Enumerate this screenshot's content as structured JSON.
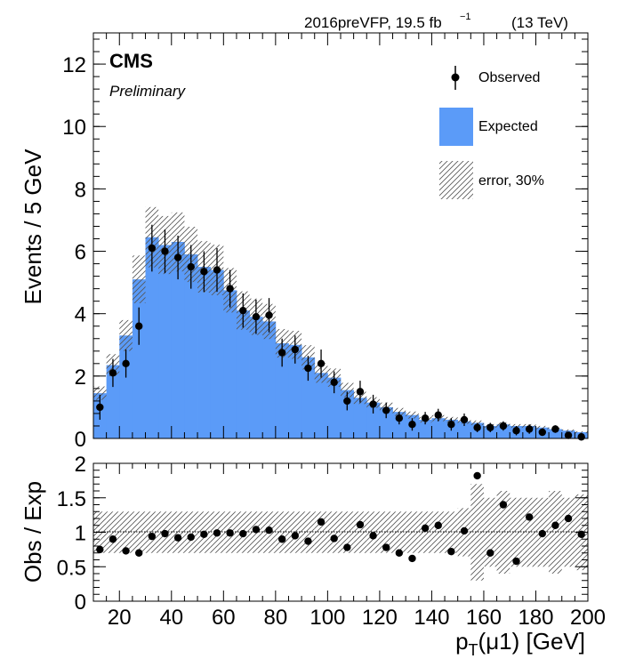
{
  "header": {
    "lumi_main": "2016preVFP, 19.5 fb",
    "lumi_exp": "−1",
    "lumi_energy": "(13 TeV)",
    "cms": "CMS",
    "preliminary": "Preliminary"
  },
  "legend": {
    "observed": "Observed",
    "expected": "Expected",
    "error": "error, 30%"
  },
  "colors": {
    "expected": "#5b9bf8",
    "points": "#000000"
  },
  "chart_data": [
    {
      "type": "bar",
      "panel": "top",
      "ylabel": "Events / 5 GeV",
      "ylim": [
        0,
        13
      ],
      "xlim": [
        10,
        200
      ],
      "yticks": [
        0,
        2,
        4,
        6,
        8,
        10,
        12
      ],
      "xticks": [
        20,
        40,
        60,
        80,
        100,
        120,
        140,
        160,
        180,
        200
      ],
      "bin_width": 5,
      "bin_edges": [
        10,
        15,
        20,
        25,
        30,
        35,
        40,
        45,
        50,
        55,
        60,
        65,
        70,
        75,
        80,
        85,
        90,
        95,
        100,
        105,
        110,
        115,
        120,
        125,
        130,
        135,
        140,
        145,
        150,
        155,
        160,
        165,
        170,
        175,
        180,
        185,
        190,
        195,
        200
      ],
      "series": [
        {
          "name": "Expected",
          "values": [
            1.45,
            2.35,
            3.3,
            5.1,
            6.45,
            6.2,
            6.3,
            5.9,
            5.5,
            5.4,
            4.75,
            4.1,
            3.9,
            3.75,
            3.05,
            3.0,
            2.6,
            2.1,
            1.95,
            1.55,
            1.3,
            1.15,
            1.0,
            0.85,
            0.75,
            0.6,
            0.65,
            0.6,
            0.55,
            0.5,
            0.4,
            0.45,
            0.4,
            0.4,
            0.35,
            0.3,
            0.25,
            0.2
          ]
        },
        {
          "name": "Observed",
          "values": [
            1.0,
            2.1,
            2.4,
            3.6,
            6.1,
            6.0,
            5.8,
            5.5,
            5.35,
            5.4,
            4.8,
            4.1,
            3.9,
            3.95,
            2.75,
            2.85,
            2.25,
            2.4,
            1.8,
            1.2,
            1.5,
            1.1,
            0.9,
            0.65,
            0.45,
            0.65,
            0.75,
            0.45,
            0.6,
            0.35,
            0.35,
            0.4,
            0.25,
            0.3,
            0.2,
            0.3,
            0.1,
            0.05
          ],
          "errors": [
            0.4,
            0.45,
            0.45,
            0.6,
            0.75,
            0.7,
            0.7,
            0.7,
            0.65,
            0.7,
            0.6,
            0.55,
            0.55,
            0.55,
            0.45,
            0.45,
            0.4,
            0.45,
            0.35,
            0.3,
            0.35,
            0.3,
            0.25,
            0.2,
            0.2,
            0.2,
            0.2,
            0.2,
            0.2,
            0.15,
            0.15,
            0.15,
            0.15,
            0.15,
            0.12,
            0.12,
            0.1,
            0.08
          ]
        }
      ]
    },
    {
      "type": "scatter",
      "panel": "bottom",
      "ylabel": "Obs / Exp",
      "xlabel": "p_T(μ1) [GeV]",
      "ylim": [
        0,
        2
      ],
      "xlim": [
        10,
        200
      ],
      "yticks": [
        0,
        0.5,
        1,
        1.5,
        2
      ],
      "ytick_labels": [
        "0",
        "0.5",
        "1",
        "1.5",
        "2"
      ],
      "xticks": [
        20,
        40,
        60,
        80,
        100,
        120,
        140,
        160,
        180,
        200
      ],
      "reference_line": 1,
      "x": [
        12.5,
        17.5,
        22.5,
        27.5,
        32.5,
        37.5,
        42.5,
        47.5,
        52.5,
        57.5,
        62.5,
        67.5,
        72.5,
        77.5,
        82.5,
        87.5,
        92.5,
        97.5,
        102.5,
        107.5,
        112.5,
        117.5,
        122.5,
        127.5,
        132.5,
        137.5,
        142.5,
        147.5,
        152.5,
        157.5,
        162.5,
        167.5,
        172.5,
        177.5,
        182.5,
        187.5,
        192.5,
        197.5
      ],
      "values": [
        0.75,
        0.9,
        0.73,
        0.7,
        0.94,
        0.98,
        0.92,
        0.93,
        0.97,
        0.99,
        0.99,
        0.98,
        1.04,
        1.03,
        0.9,
        0.95,
        0.87,
        1.15,
        0.91,
        0.78,
        1.11,
        0.95,
        0.78,
        0.7,
        0.62,
        1.06,
        1.1,
        0.72,
        1.02,
        1.82,
        0.7,
        1.4,
        0.58,
        1.22,
        0.98,
        1.1,
        1.2,
        0.97
      ],
      "band_halfwidth": [
        0.3,
        0.3,
        0.3,
        0.3,
        0.3,
        0.3,
        0.3,
        0.3,
        0.3,
        0.3,
        0.3,
        0.3,
        0.3,
        0.3,
        0.3,
        0.3,
        0.3,
        0.3,
        0.3,
        0.3,
        0.3,
        0.3,
        0.3,
        0.3,
        0.3,
        0.3,
        0.3,
        0.3,
        0.35,
        0.7,
        0.5,
        0.6,
        0.5,
        0.5,
        0.5,
        0.6,
        0.5,
        0.55
      ]
    }
  ]
}
